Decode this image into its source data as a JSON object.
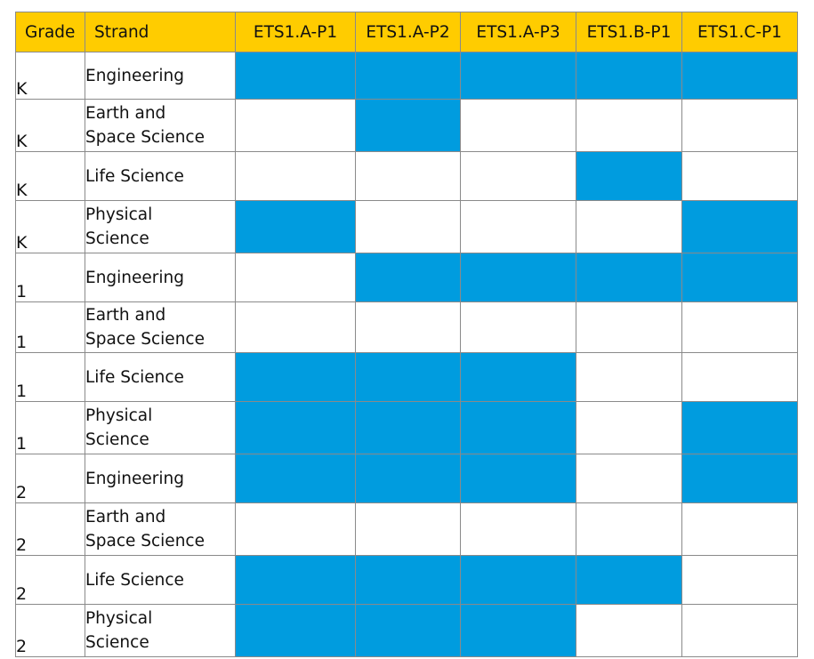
{
  "headers": [
    "Grade",
    "Strand",
    "ETS1.A-P1",
    "ETS1.A-P2",
    "ETS1.A-P3",
    "ETS1.B-P1",
    "ETS1.C-P1"
  ],
  "colors": {
    "header_bg": "#FFCC00",
    "filled": "#009CDF",
    "empty": "#FFFFFF"
  },
  "rows": [
    {
      "grade": "K",
      "strand": "Engineering",
      "cells": [
        1,
        1,
        1,
        1,
        1
      ]
    },
    {
      "grade": "K",
      "strand": "Earth and\nSpace Science",
      "cells": [
        0,
        1,
        0,
        0,
        0
      ]
    },
    {
      "grade": "K",
      "strand": "Life Science",
      "cells": [
        0,
        0,
        0,
        1,
        0
      ]
    },
    {
      "grade": "K",
      "strand": "Physical\nScience",
      "cells": [
        1,
        0,
        0,
        0,
        1
      ]
    },
    {
      "grade": "1",
      "strand": "Engineering",
      "cells": [
        0,
        1,
        1,
        1,
        1
      ]
    },
    {
      "grade": "1",
      "strand": "Earth and\nSpace Science",
      "cells": [
        0,
        0,
        0,
        0,
        0
      ]
    },
    {
      "grade": "1",
      "strand": "Life Science",
      "cells": [
        1,
        1,
        1,
        0,
        0
      ]
    },
    {
      "grade": "1",
      "strand": "Physical\nScience",
      "cells": [
        1,
        1,
        1,
        0,
        1
      ]
    },
    {
      "grade": "2",
      "strand": "Engineering",
      "cells": [
        1,
        1,
        1,
        0,
        1
      ]
    },
    {
      "grade": "2",
      "strand": "Earth and\nSpace Science",
      "cells": [
        0,
        0,
        0,
        0,
        0
      ]
    },
    {
      "grade": "2",
      "strand": "Life Science",
      "cells": [
        1,
        1,
        1,
        1,
        0
      ]
    },
    {
      "grade": "2",
      "strand": "Physical\nScience",
      "cells": [
        1,
        1,
        1,
        0,
        0
      ]
    }
  ]
}
